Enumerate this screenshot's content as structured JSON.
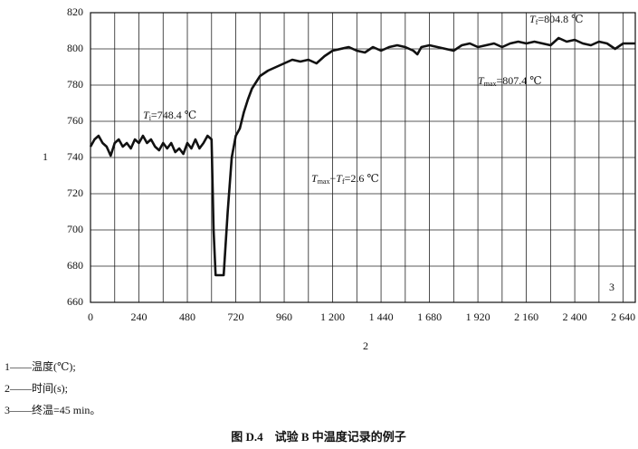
{
  "chart_data": {
    "type": "line",
    "ylabel": "1",
    "xlabel": "2",
    "marker": "3",
    "annotations": [
      [
        "T",
        "i",
        "=748.4 ℃"
      ],
      [
        "T",
        "f",
        "=804.8 ℃"
      ],
      [
        "T",
        "max",
        "=807.4 ℃"
      ],
      [
        "T",
        "max",
        "−",
        "T",
        "f",
        "=2.6 ℃"
      ]
    ],
    "x": [
      0,
      20,
      40,
      60,
      80,
      100,
      120,
      140,
      160,
      180,
      200,
      220,
      240,
      260,
      280,
      300,
      320,
      340,
      360,
      380,
      400,
      420,
      440,
      460,
      480,
      500,
      520,
      540,
      560,
      580,
      600,
      610,
      620,
      660,
      680,
      700,
      720,
      740,
      760,
      780,
      800,
      840,
      880,
      920,
      960,
      1000,
      1040,
      1080,
      1120,
      1160,
      1200,
      1280,
      1320,
      1360,
      1400,
      1440,
      1480,
      1520,
      1560,
      1600,
      1620,
      1640,
      1680,
      1720,
      1760,
      1800,
      1840,
      1880,
      1920,
      1960,
      2000,
      2040,
      2080,
      2120,
      2160,
      2200,
      2240,
      2280,
      2320,
      2360,
      2400,
      2440,
      2480,
      2520,
      2560,
      2600,
      2640,
      2700
    ],
    "series": [
      {
        "color": "#111111",
        "values": [
          746,
          750,
          752,
          748,
          746,
          741,
          748,
          750,
          746,
          748,
          745,
          750,
          748,
          752,
          748,
          750,
          746,
          744,
          748,
          745,
          748,
          743,
          745,
          742,
          748,
          745,
          750,
          745,
          748,
          752,
          750,
          700,
          675,
          675,
          710,
          740,
          752,
          756,
          765,
          772,
          778,
          785,
          788,
          790,
          792,
          794,
          793,
          794,
          792,
          796,
          799,
          801,
          799,
          798,
          801,
          799,
          801,
          802,
          801,
          799,
          797,
          801,
          802,
          801,
          800,
          799,
          802,
          803,
          801,
          802,
          803,
          801,
          803,
          804,
          803,
          804,
          803,
          802,
          806,
          804,
          805,
          803,
          802,
          804,
          803,
          800,
          803,
          803
        ]
      }
    ],
    "xlim": [
      0,
      2700
    ],
    "ylim": [
      660,
      820
    ],
    "xticks": [
      0,
      240,
      480,
      720,
      960,
      {
        "value": 1200,
        "label": "1 200"
      },
      {
        "value": 1440,
        "label": "1 440"
      },
      {
        "value": 1680,
        "label": "1 680"
      },
      {
        "value": 1920,
        "label": "1 920"
      },
      {
        "value": 2160,
        "label": "2 160"
      },
      {
        "value": 2400,
        "label": "2 400"
      },
      {
        "value": 2640,
        "label": "2 640"
      }
    ],
    "xgrid": [
      120,
      360,
      600,
      840,
      1080,
      1320,
      1560,
      1800,
      2040,
      2280,
      2520
    ],
    "yticks": [
      660,
      680,
      700,
      720,
      740,
      760,
      780,
      800,
      820
    ],
    "grid": true
  },
  "notes": [
    "1——温度(℃);",
    "2——时间(s);",
    "3——终温=45 min。"
  ],
  "caption": "图 D.4　试验 B 中温度记录的例子"
}
